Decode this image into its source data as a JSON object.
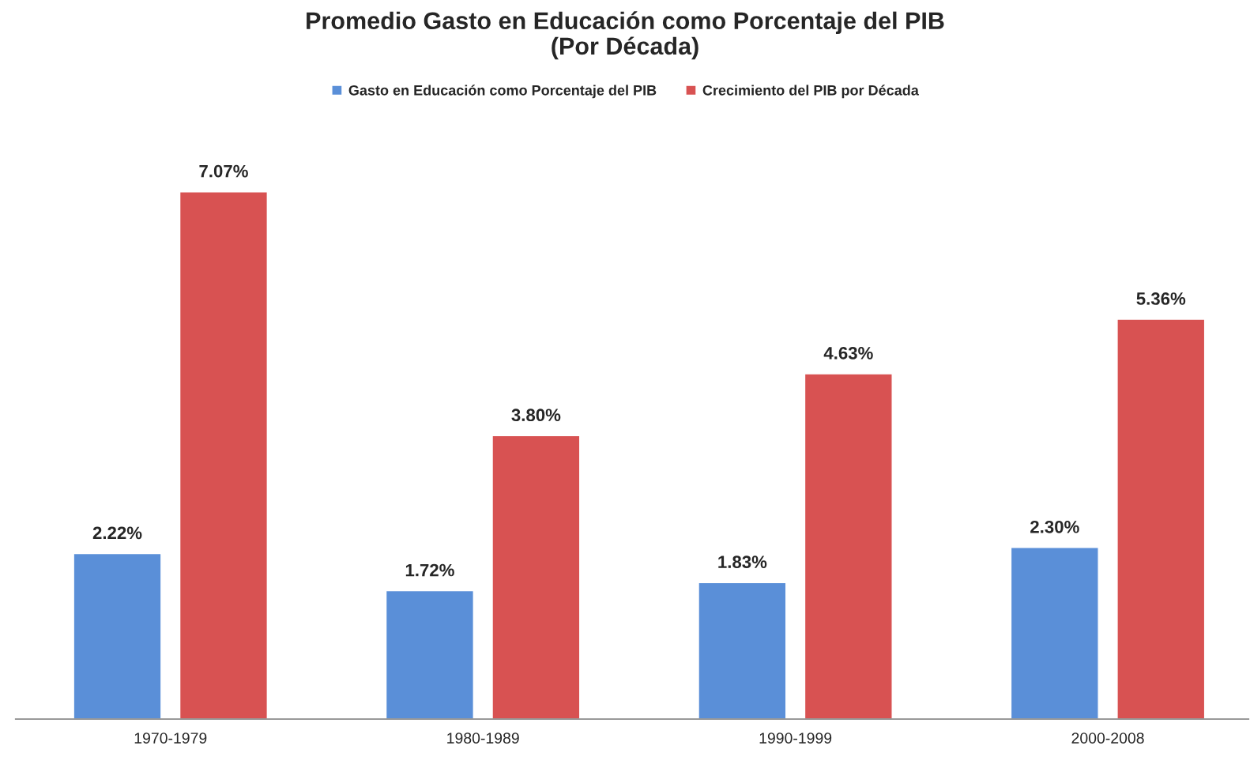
{
  "chart_data": {
    "type": "bar",
    "title": "Promedio Gasto en Educación como Porcentaje del PIB\n(Por Década)",
    "categories": [
      "1970-1979",
      "1980-1989",
      "1990-1999",
      "2000-2008"
    ],
    "series": [
      {
        "name": "Gasto en Educación como Porcentaje del PIB",
        "color": "#5a8fd8",
        "values": [
          2.22,
          1.72,
          1.83,
          2.3
        ],
        "value_labels": [
          "2.22%",
          "1.72%",
          "1.83%",
          "2.30%"
        ]
      },
      {
        "name": "Crecimiento del PIB por Década",
        "color": "#d85252",
        "values": [
          7.07,
          3.8,
          4.63,
          5.36
        ],
        "value_labels": [
          "7.07%",
          "3.80%",
          "4.63%",
          "5.36%"
        ]
      }
    ],
    "legend": "top",
    "grid": false,
    "tick_labels": "x"
  }
}
